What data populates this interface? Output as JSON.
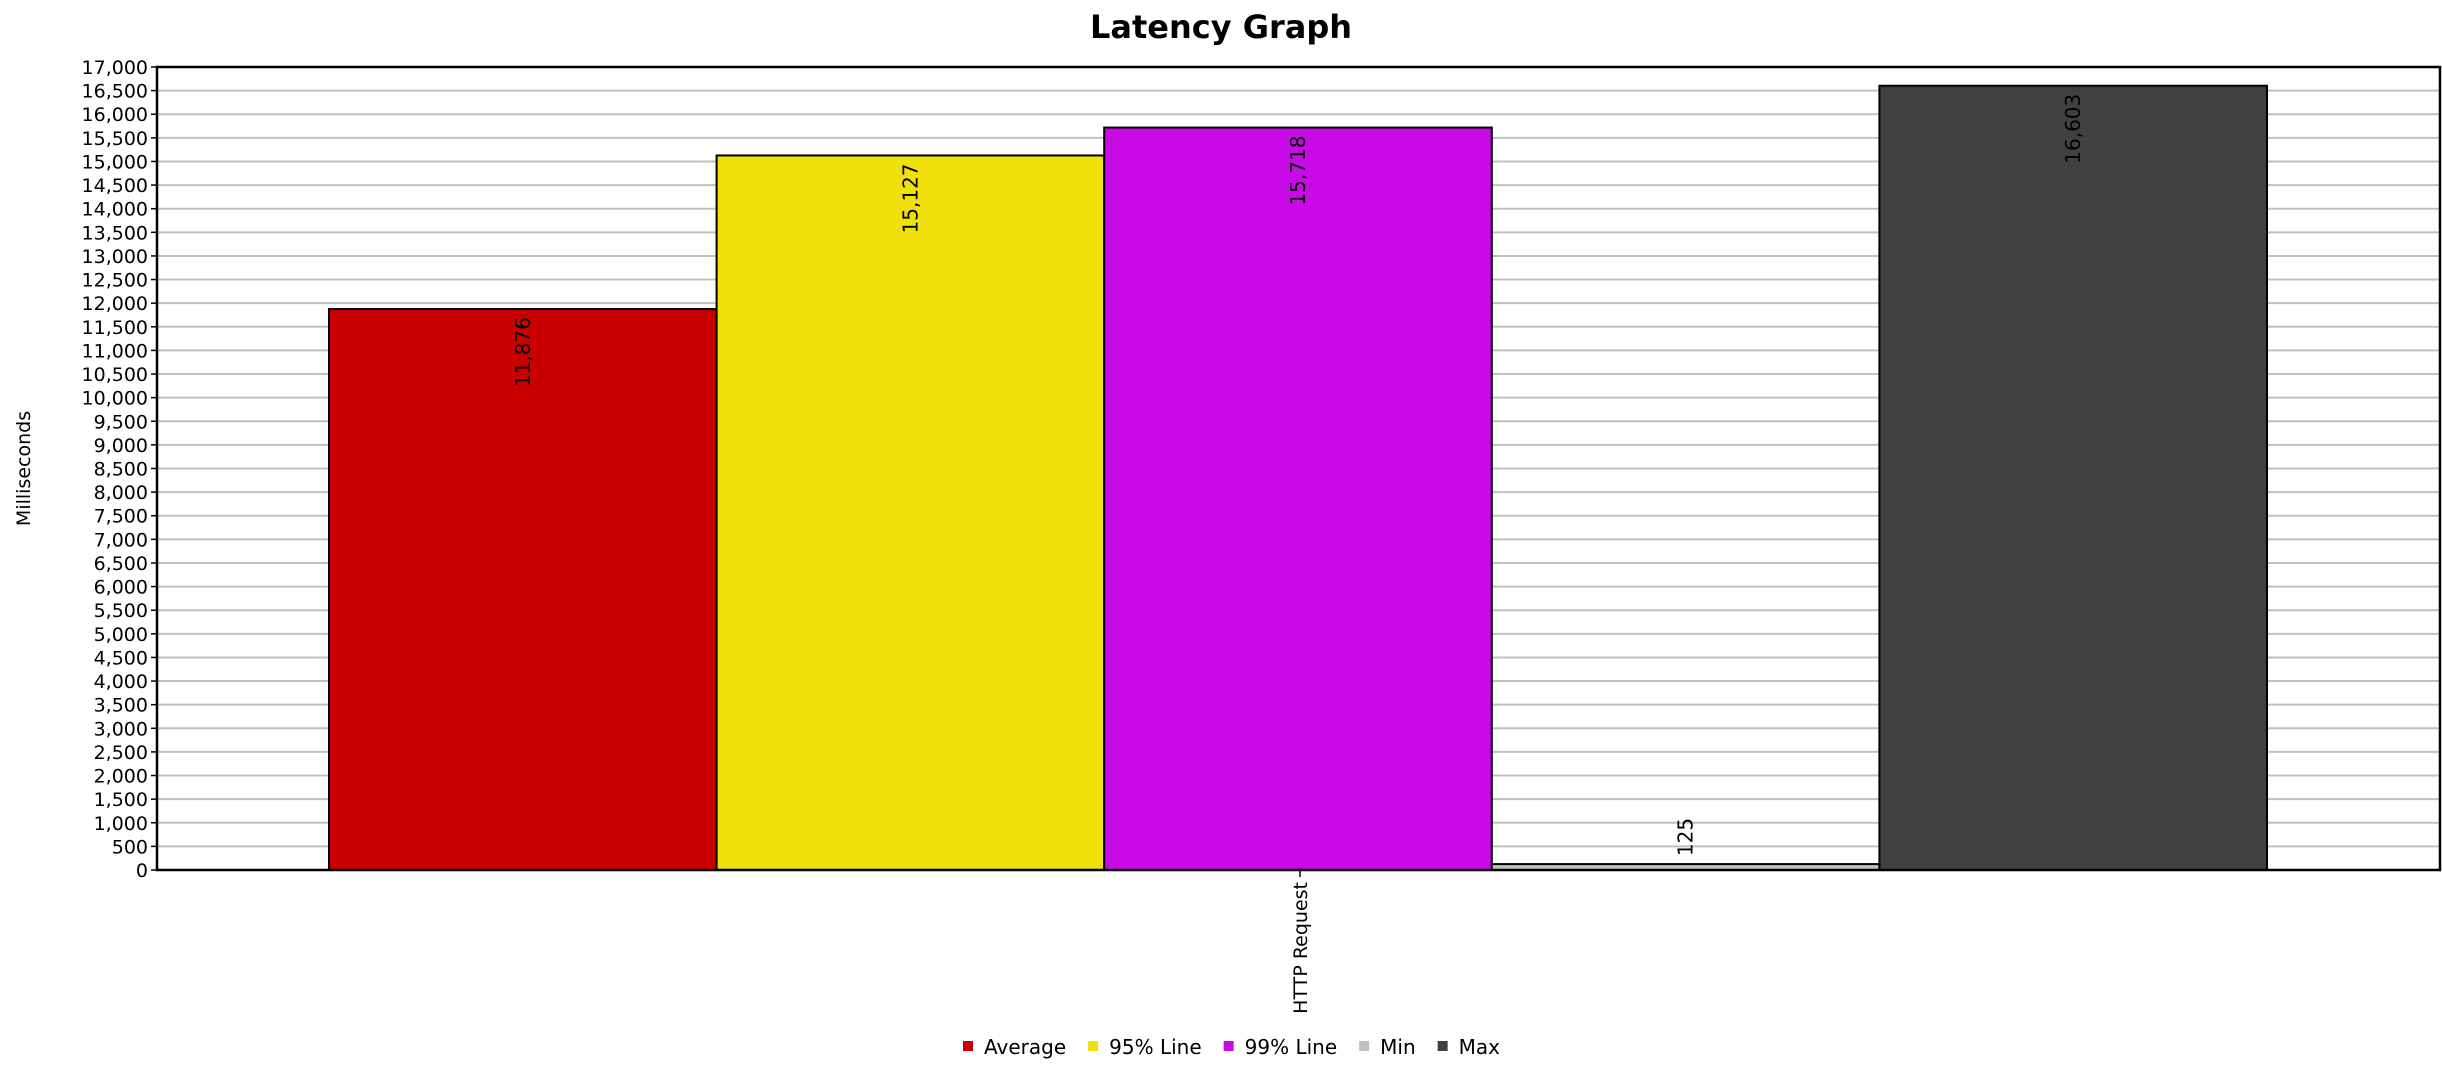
{
  "chart_data": {
    "type": "bar",
    "title": "Latency Graph",
    "xlabel": "",
    "ylabel": "Milliseconds",
    "categories": [
      "HTTP Request"
    ],
    "series": [
      {
        "name": "Average",
        "values": [
          11876
        ],
        "label": "11,876",
        "color": "#c80000"
      },
      {
        "name": "95% Line",
        "values": [
          15127
        ],
        "label": "15,127",
        "color": "#f0e10a"
      },
      {
        "name": "99% Line",
        "values": [
          15718
        ],
        "label": "15,718",
        "color": "#c80ae6"
      },
      {
        "name": "Min",
        "values": [
          125
        ],
        "label": "125",
        "color": "#c0c0c0"
      },
      {
        "name": "Max",
        "values": [
          16603
        ],
        "label": "16,603",
        "color": "#404040"
      }
    ],
    "ylim": [
      0,
      17000
    ],
    "y_ticks": [
      0,
      500,
      1000,
      1500,
      2000,
      2500,
      3000,
      3500,
      4000,
      4500,
      5000,
      5500,
      6000,
      6500,
      7000,
      7500,
      8000,
      8500,
      9000,
      9500,
      10000,
      10500,
      11000,
      11500,
      12000,
      12500,
      13000,
      13500,
      14000,
      14500,
      15000,
      15500,
      16000,
      16500,
      17000
    ],
    "y_tick_labels": [
      "0",
      "500",
      "1,000",
      "1,500",
      "2,000",
      "2,500",
      "3,000",
      "3,500",
      "4,000",
      "4,500",
      "5,000",
      "5,500",
      "6,000",
      "6,500",
      "7,000",
      "7,500",
      "8,000",
      "8,500",
      "9,000",
      "9,500",
      "10,000",
      "10,500",
      "11,000",
      "11,500",
      "12,000",
      "12,500",
      "13,000",
      "13,500",
      "14,000",
      "14,500",
      "15,000",
      "15,500",
      "16,000",
      "16,500",
      "17,000"
    ],
    "grid": true,
    "legend_position": "bottom-center",
    "data_labels_rotated": true
  }
}
